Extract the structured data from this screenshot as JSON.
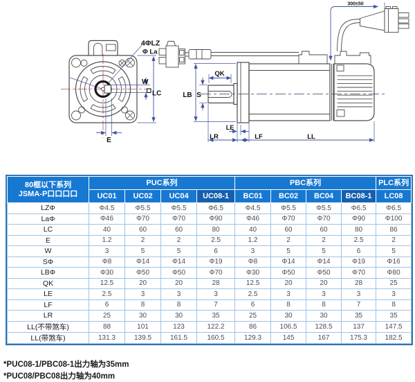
{
  "drawing": {
    "front_view": {
      "labels": {
        "lz": "4ΦLZ",
        "la": "Φ La",
        "w": "W",
        "lc": "LC",
        "e": "E"
      }
    },
    "side_view": {
      "labels": {
        "cable": "300±50",
        "qk": "QK",
        "lb": "LB",
        "s": "S",
        "le": "LE",
        "lr": "LR",
        "lf": "LF",
        "ll": "LL"
      }
    }
  },
  "table": {
    "corner_header": {
      "line1": "80框以下系列",
      "line2": "JSMA-P口口口口"
    },
    "groups": [
      {
        "label": "PUC系列",
        "span": 4
      },
      {
        "label": "PBC系列",
        "span": 4
      },
      {
        "label": "PLC系列",
        "span": 1
      }
    ],
    "models": [
      "UC01",
      "UC02",
      "UC04",
      "UC08-1",
      "BC01",
      "BC02",
      "BC04",
      "BC08-1",
      "LC08"
    ],
    "highlighted_models": [
      "UC08-1",
      "BC08-1"
    ],
    "rows": [
      {
        "label": "LZΦ",
        "values": [
          "Φ4.5",
          "Φ5.5",
          "Φ5.5",
          "Φ6.5",
          "Φ4.5",
          "Φ5.5",
          "Φ5.5",
          "Φ6.5",
          "Φ6.5"
        ]
      },
      {
        "label": "LaΦ",
        "values": [
          "Φ46",
          "Φ70",
          "Φ70",
          "Φ90",
          "Φ46",
          "Φ70",
          "Φ70",
          "Φ90",
          "Φ100"
        ]
      },
      {
        "label": "LC",
        "values": [
          "40",
          "60",
          "60",
          "80",
          "40",
          "60",
          "60",
          "80",
          "86"
        ]
      },
      {
        "label": "E",
        "values": [
          "1.2",
          "2",
          "2",
          "2.5",
          "1.2",
          "2",
          "2",
          "2.5",
          "2"
        ]
      },
      {
        "label": "W",
        "values": [
          "3",
          "5",
          "5",
          "6",
          "3",
          "5",
          "5",
          "6",
          "5"
        ]
      },
      {
        "label": "SΦ",
        "values": [
          "Φ8",
          "Φ14",
          "Φ14",
          "Φ19",
          "Φ8",
          "Φ14",
          "Φ14",
          "Φ19",
          "Φ16"
        ]
      },
      {
        "label": "LBΦ",
        "values": [
          "Φ30",
          "Φ50",
          "Φ50",
          "Φ70",
          "Φ30",
          "Φ50",
          "Φ50",
          "Φ70",
          "Φ80"
        ]
      },
      {
        "label": "QK",
        "values": [
          "12.5",
          "20",
          "20",
          "28",
          "12.5",
          "20",
          "20",
          "28",
          "25"
        ]
      },
      {
        "label": "LE",
        "values": [
          "2.5",
          "3",
          "3",
          "3",
          "2.5",
          "3",
          "3",
          "3",
          "3"
        ]
      },
      {
        "label": "LF",
        "values": [
          "6",
          "8",
          "8",
          "7",
          "6",
          "8",
          "8",
          "7",
          "8"
        ]
      },
      {
        "label": "LR",
        "values": [
          "25",
          "30",
          "30",
          "35",
          "25",
          "30",
          "30",
          "35",
          "35"
        ]
      },
      {
        "label": "LL(不带煞车)",
        "values": [
          "88",
          "101",
          "123",
          "122.2",
          "86",
          "106.5",
          "128.5",
          "137",
          "147.5"
        ]
      },
      {
        "label": "LL(带煞车)",
        "values": [
          "131.3",
          "139.5",
          "161.5",
          "160.5",
          "129.3",
          "145",
          "167",
          "175.3",
          "182.5"
        ]
      }
    ],
    "colors": {
      "header_bg": "#1778d2",
      "header_highlight_bg": "#1460ae",
      "grid": "#9dc3e6",
      "border": "#2e74b5"
    }
  },
  "footnotes": [
    "*PUC08-1/PBC08-1出力轴为35mm",
    "*PUC08/PBC08出力轴为40mm"
  ]
}
